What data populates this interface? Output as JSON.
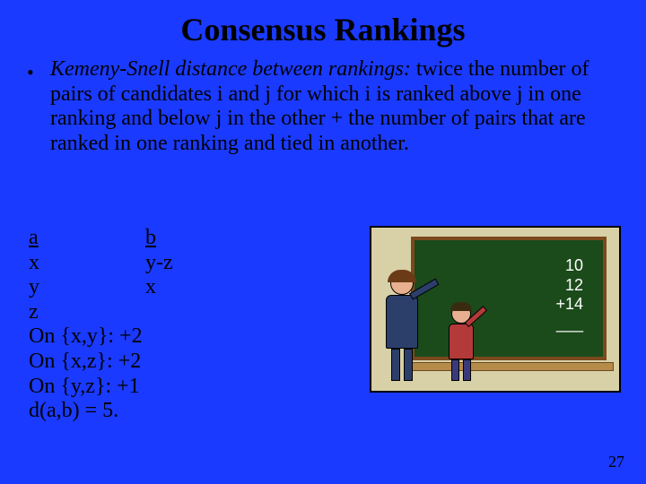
{
  "title": "Consensus Rankings",
  "definition": {
    "term": "Kemeny-Snell distance between rankings:",
    "rest": " twice the number of pairs of candidates  i  and  j  for which  i  is ranked above  j  in one ranking and below  j  in the other + the number of pairs that are ranked in one ranking and tied in another."
  },
  "example": {
    "colA_header": "a",
    "colB_header": "b",
    "rows": [
      {
        "a": "x",
        "b": "y-z"
      },
      {
        "a": "y",
        "b": " x"
      },
      {
        "a": "z",
        "b": ""
      }
    ],
    "calc": [
      "On {x,y}: +2",
      "On {x,z}: +2",
      "On {y,z}: +1",
      "d(a,b) = 5."
    ]
  },
  "chalkboard": {
    "line1": "10",
    "line2": "12",
    "line3": "+14",
    "underline": "___"
  },
  "slide_number": "27",
  "colors": {
    "background": "#1a3aff",
    "text": "#000000",
    "board": "#1b4a1b",
    "board_frame": "#7a4a1e",
    "illus_bg": "#d8d0a6"
  }
}
